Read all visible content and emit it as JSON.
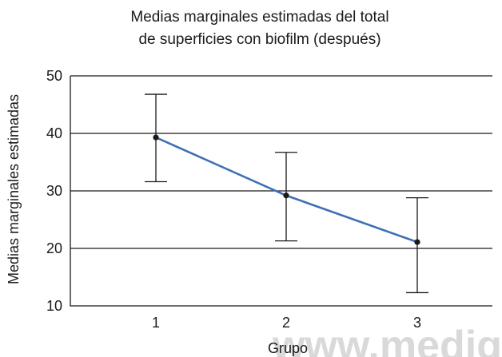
{
  "chart_data": {
    "type": "line",
    "title": [
      "Medias marginales estimadas del total",
      "de superficies con biofilm (después)"
    ],
    "xlabel": "Grupo",
    "ylabel": "Medias marginales estimadas",
    "categories": [
      "1",
      "2",
      "3"
    ],
    "series": [
      {
        "values": [
          39.3,
          29.2,
          21.1
        ],
        "error_upper": [
          46.8,
          36.7,
          28.8
        ],
        "error_lower": [
          31.6,
          21.3,
          12.3
        ],
        "color": "#3f6fb5"
      }
    ],
    "yticks": [
      "50",
      "40",
      "30",
      "20",
      "10"
    ],
    "ytick_values": [
      50,
      40,
      30,
      20,
      10
    ],
    "ylim": [
      10,
      50
    ],
    "grid": "horizontal",
    "watermark": "www.medig"
  }
}
